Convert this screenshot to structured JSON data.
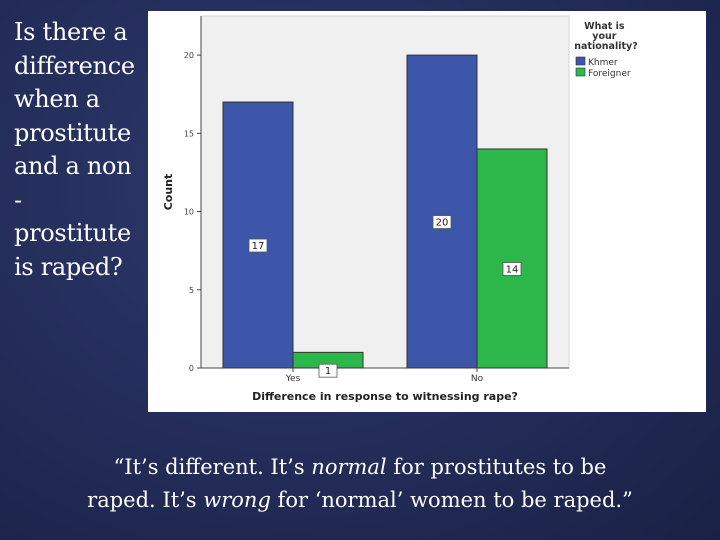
{
  "question": {
    "lines": [
      "Is there a",
      "difference",
      "when a",
      "prostitute",
      "and a non",
      "-",
      "prostitute",
      "is raped?"
    ]
  },
  "quote": {
    "line1": {
      "p1": "“It’s different.  It’s ",
      "em1": "normal",
      "p2": " for prostitutes to be"
    },
    "line2": {
      "p1": "raped.  It’s ",
      "em1": "wrong",
      "p2": " for ‘normal’ women to be raped.”"
    }
  },
  "chart_data": {
    "type": "bar",
    "categories": [
      "Yes",
      "No"
    ],
    "series": [
      {
        "name": "Khmer",
        "values": [
          17,
          20
        ],
        "color": "#3c56aa"
      },
      {
        "name": "Foreigner",
        "values": [
          1,
          14
        ],
        "color": "#2db74a"
      }
    ],
    "xlabel": "Difference in response to witnessing rape?",
    "ylabel": "Count",
    "ylim": [
      0,
      22.5
    ],
    "yticks": [
      0,
      5,
      10,
      15,
      20
    ],
    "legend_title": "What is your nationality?",
    "legend_position": "top-right",
    "grid": false,
    "data_labels": true
  }
}
